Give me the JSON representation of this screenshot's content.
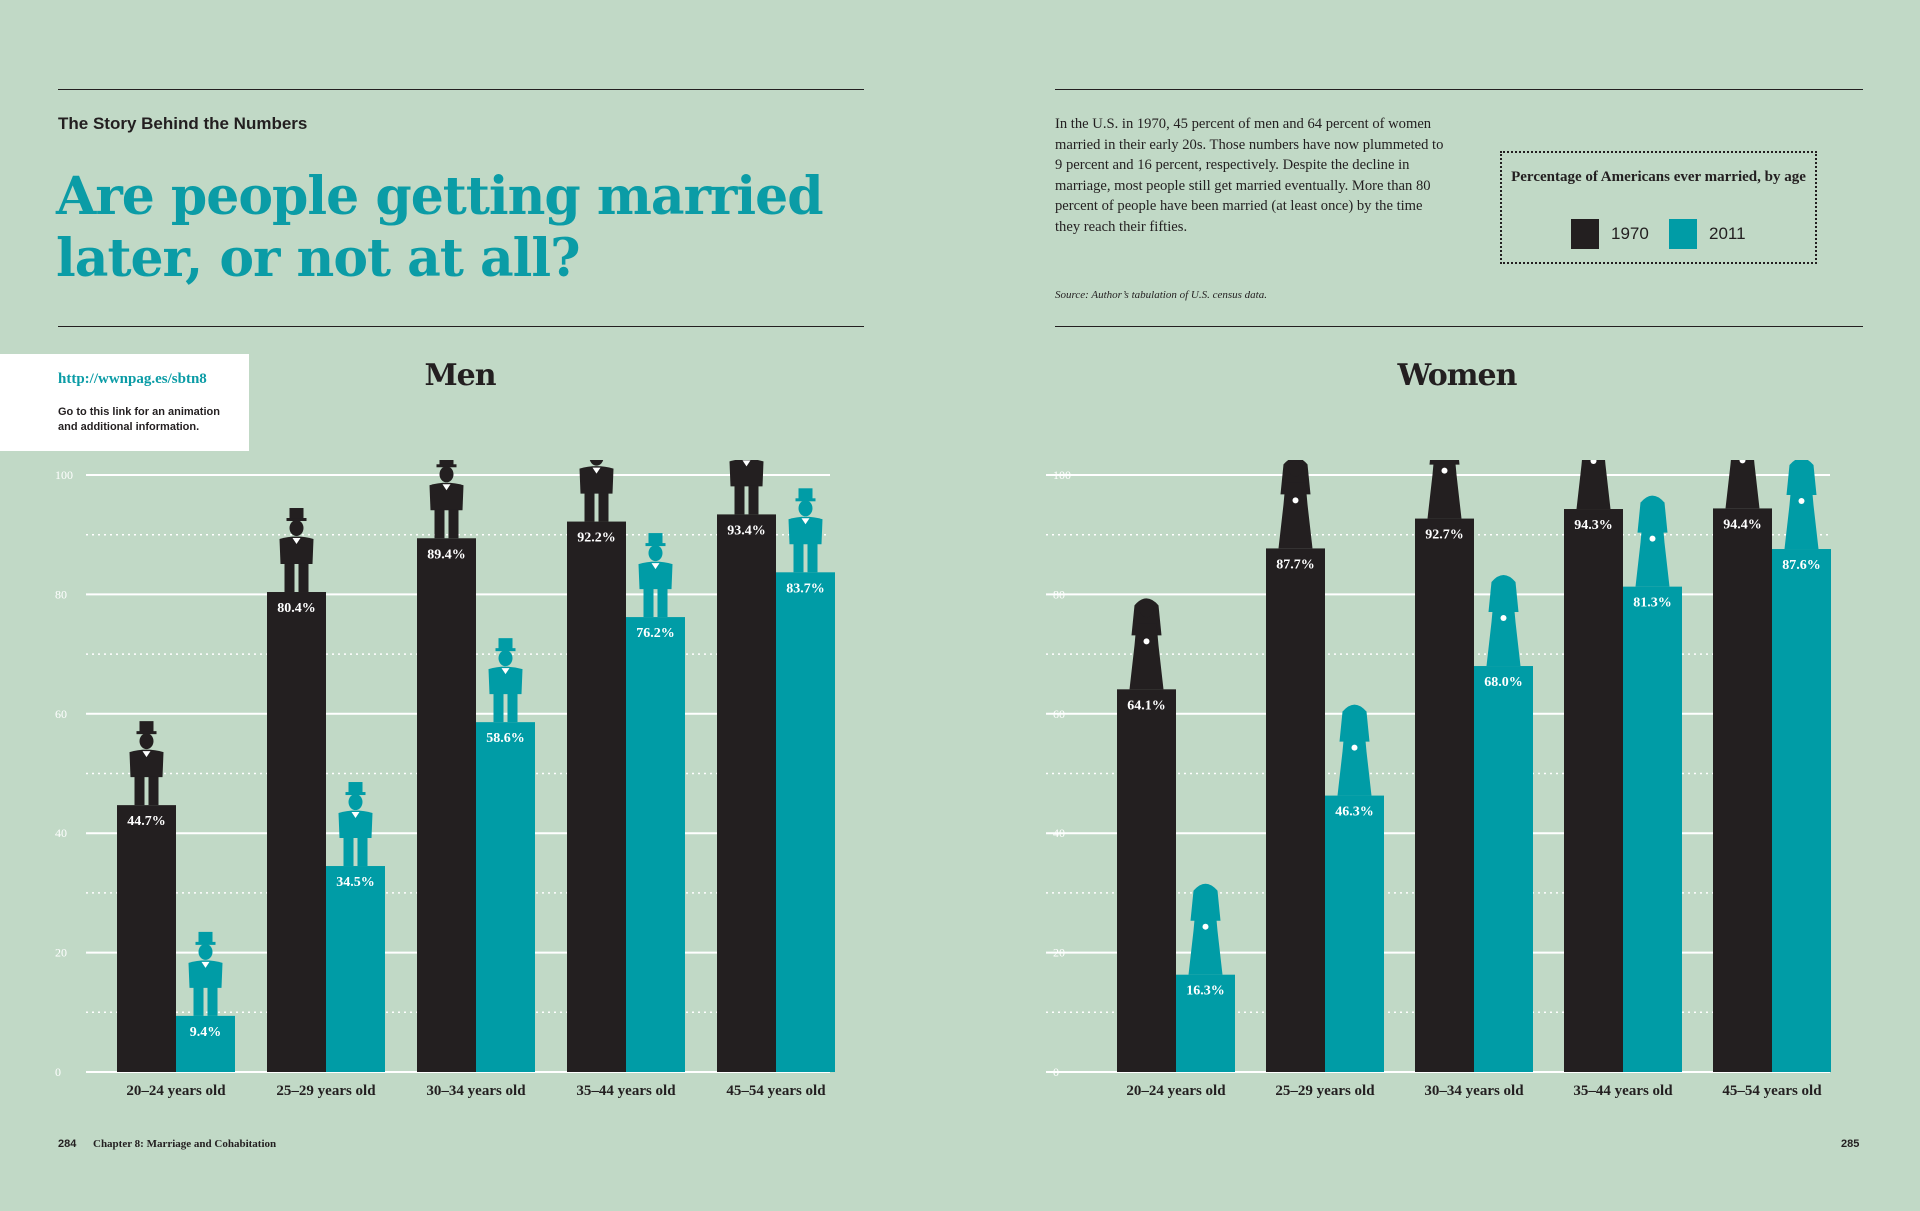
{
  "kicker": "The Story Behind the Numbers",
  "headline": "Are people getting married later, or not at all?",
  "intro": "In the U.S. in 1970, 45 percent of men and 64 percent of women married in their early 20s. Those numbers have now plummeted to 9 percent and 16 percent, respectively. Despite the decline in marriage, most people still get married eventually. More than 80 percent of people have been married (at least once) by the time they reach their fifties.",
  "source": "Source: Author’s tabulation of U.S. census data.",
  "legend": {
    "title": "Percentage of Americans ever married, by age",
    "items": [
      {
        "label": "1970",
        "color": "#231f20"
      },
      {
        "label": "2011",
        "color": "#009ca6"
      }
    ]
  },
  "link": {
    "url": "http://wwnpag.es/sbtn8",
    "note": "Go to this link for an animation and additional information."
  },
  "footer": {
    "left_page": "284",
    "chapter": "Chapter 8: Marriage and Cohabitation",
    "right_page": "285"
  },
  "icons": {
    "men": "groom-icon",
    "women": "bride-icon"
  },
  "chart_data": [
    {
      "type": "bar",
      "title": "Men",
      "categories": [
        "20–24 years old",
        "25–29 years old",
        "30–34 years old",
        "35–44 years old",
        "45–54 years old"
      ],
      "series": [
        {
          "name": "1970",
          "color": "#231f20",
          "values": [
            44.7,
            80.4,
            89.4,
            92.2,
            93.4
          ],
          "labels": [
            "44.7%",
            "80.4%",
            "89.4%",
            "92.2%",
            "93.4%"
          ]
        },
        {
          "name": "2011",
          "color": "#009ca6",
          "values": [
            9.4,
            34.5,
            58.6,
            76.2,
            83.7
          ],
          "labels": [
            "9.4%",
            "34.5%",
            "58.6%",
            "76.2%",
            "83.7%"
          ]
        }
      ],
      "ylim": [
        0,
        100
      ],
      "yticks": [
        "0",
        "20",
        "40",
        "60",
        "80",
        "100"
      ],
      "grid": true
    },
    {
      "type": "bar",
      "title": "Women",
      "categories": [
        "20–24 years old",
        "25–29 years old",
        "30–34 years old",
        "35–44 years old",
        "45–54 years old"
      ],
      "series": [
        {
          "name": "1970",
          "color": "#231f20",
          "values": [
            64.1,
            87.7,
            92.7,
            94.3,
            94.4
          ],
          "labels": [
            "64.1%",
            "87.7%",
            "92.7%",
            "94.3%",
            "94.4%"
          ]
        },
        {
          "name": "2011",
          "color": "#009ca6",
          "values": [
            16.3,
            46.3,
            68.0,
            81.3,
            87.6
          ],
          "labels": [
            "16.3%",
            "46.3%",
            "68.0%",
            "81.3%",
            "87.6%"
          ]
        }
      ],
      "ylim": [
        0,
        100
      ],
      "yticks": [
        "0",
        "20",
        "40",
        "60",
        "80",
        "100"
      ],
      "grid": true
    }
  ]
}
